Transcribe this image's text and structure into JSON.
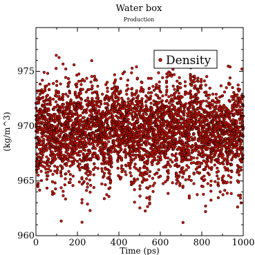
{
  "chart_data": {
    "type": "scatter",
    "title": "Water box",
    "subtitle": "Production",
    "xlabel": "Time (ps)",
    "ylabel": "(kg/m^3)",
    "xlim": [
      0,
      1000
    ],
    "ylim": [
      960,
      979
    ],
    "xticks": [
      0,
      200,
      400,
      600,
      800,
      1000
    ],
    "yticks": [
      960,
      965,
      970,
      975
    ],
    "grid": false,
    "legend_position": "top-right",
    "series": [
      {
        "name": "Density",
        "marker_color": "#cc1100",
        "marker_edge": "#000000",
        "sample_interval_ps": 0.25,
        "mean": 969.5,
        "std": 2.2,
        "min": 960.3,
        "max": 978.3
      }
    ]
  },
  "colors": {
    "background": "#ffffff",
    "axes": "#000000",
    "marker_fill": "#cc1100",
    "marker_edge": "#000000"
  }
}
